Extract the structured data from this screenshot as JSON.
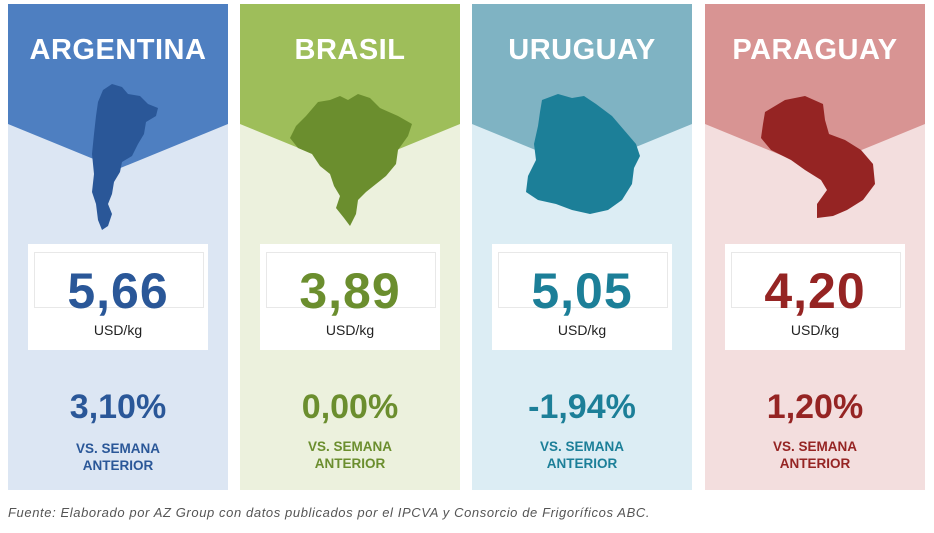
{
  "cards": [
    {
      "country": "ARGENTINA",
      "price": "5,66",
      "unit": "USD/kg",
      "change": "3,10%",
      "vs_line1": "VS. SEMANA",
      "vs_line2": "ANTERIOR",
      "banner_color": "#4e7fc1",
      "panel_color": "#dce6f3",
      "accent_color": "#2a5798",
      "map_icon": "argentina-map-icon"
    },
    {
      "country": "BRASIL",
      "price": "3,89",
      "unit": "USD/kg",
      "change": "0,00%",
      "vs_line1": "VS. SEMANA",
      "vs_line2": "ANTERIOR",
      "banner_color": "#9ebe5a",
      "panel_color": "#ecf1dd",
      "accent_color": "#6b8e2e",
      "map_icon": "brazil-map-icon"
    },
    {
      "country": "URUGUAY",
      "price": "5,05",
      "unit": "USD/kg",
      "change": "-1,94%",
      "vs_line1": "VS. SEMANA",
      "vs_line2": "ANTERIOR",
      "banner_color": "#7fb3c3",
      "panel_color": "#dcedf4",
      "accent_color": "#1c7f98",
      "map_icon": "uruguay-map-icon"
    },
    {
      "country": "PARAGUAY",
      "price": "4,20",
      "unit": "USD/kg",
      "change": "1,20%",
      "vs_line1": "VS. SEMANA",
      "vs_line2": "ANTERIOR",
      "banner_color": "#d89493",
      "panel_color": "#f3dede",
      "accent_color": "#952423",
      "map_icon": "paraguay-map-icon"
    }
  ],
  "source_note": "Fuente: Elaborado por AZ Group con datos publicados por el IPCVA y Consorcio de Frigoríficos ABC."
}
